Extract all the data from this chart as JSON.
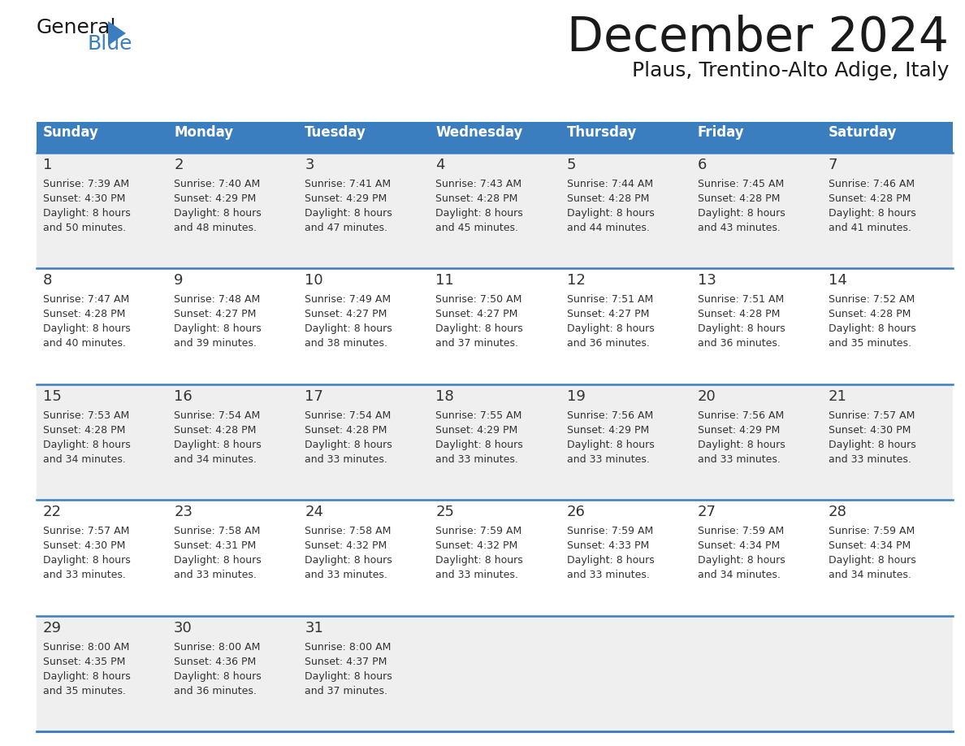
{
  "title": "December 2024",
  "subtitle": "Plaus, Trentino-Alto Adige, Italy",
  "days_of_week": [
    "Sunday",
    "Monday",
    "Tuesday",
    "Wednesday",
    "Thursday",
    "Friday",
    "Saturday"
  ],
  "header_bg": "#3a7ebf",
  "header_text_color": "#ffffff",
  "row_bg_odd": "#efefef",
  "row_bg_even": "#ffffff",
  "cell_text_color": "#333333",
  "day_num_color": "#333333",
  "divider_color": "#3a7ebf",
  "calendar_data": [
    [
      {
        "day": 1,
        "sunrise": "7:39 AM",
        "sunset": "4:30 PM",
        "daylight": "8 hours and 50 minutes"
      },
      {
        "day": 2,
        "sunrise": "7:40 AM",
        "sunset": "4:29 PM",
        "daylight": "8 hours and 48 minutes"
      },
      {
        "day": 3,
        "sunrise": "7:41 AM",
        "sunset": "4:29 PM",
        "daylight": "8 hours and 47 minutes"
      },
      {
        "day": 4,
        "sunrise": "7:43 AM",
        "sunset": "4:28 PM",
        "daylight": "8 hours and 45 minutes"
      },
      {
        "day": 5,
        "sunrise": "7:44 AM",
        "sunset": "4:28 PM",
        "daylight": "8 hours and 44 minutes"
      },
      {
        "day": 6,
        "sunrise": "7:45 AM",
        "sunset": "4:28 PM",
        "daylight": "8 hours and 43 minutes"
      },
      {
        "day": 7,
        "sunrise": "7:46 AM",
        "sunset": "4:28 PM",
        "daylight": "8 hours and 41 minutes"
      }
    ],
    [
      {
        "day": 8,
        "sunrise": "7:47 AM",
        "sunset": "4:28 PM",
        "daylight": "8 hours and 40 minutes"
      },
      {
        "day": 9,
        "sunrise": "7:48 AM",
        "sunset": "4:27 PM",
        "daylight": "8 hours and 39 minutes"
      },
      {
        "day": 10,
        "sunrise": "7:49 AM",
        "sunset": "4:27 PM",
        "daylight": "8 hours and 38 minutes"
      },
      {
        "day": 11,
        "sunrise": "7:50 AM",
        "sunset": "4:27 PM",
        "daylight": "8 hours and 37 minutes"
      },
      {
        "day": 12,
        "sunrise": "7:51 AM",
        "sunset": "4:27 PM",
        "daylight": "8 hours and 36 minutes"
      },
      {
        "day": 13,
        "sunrise": "7:51 AM",
        "sunset": "4:28 PM",
        "daylight": "8 hours and 36 minutes"
      },
      {
        "day": 14,
        "sunrise": "7:52 AM",
        "sunset": "4:28 PM",
        "daylight": "8 hours and 35 minutes"
      }
    ],
    [
      {
        "day": 15,
        "sunrise": "7:53 AM",
        "sunset": "4:28 PM",
        "daylight": "8 hours and 34 minutes"
      },
      {
        "day": 16,
        "sunrise": "7:54 AM",
        "sunset": "4:28 PM",
        "daylight": "8 hours and 34 minutes"
      },
      {
        "day": 17,
        "sunrise": "7:54 AM",
        "sunset": "4:28 PM",
        "daylight": "8 hours and 33 minutes"
      },
      {
        "day": 18,
        "sunrise": "7:55 AM",
        "sunset": "4:29 PM",
        "daylight": "8 hours and 33 minutes"
      },
      {
        "day": 19,
        "sunrise": "7:56 AM",
        "sunset": "4:29 PM",
        "daylight": "8 hours and 33 minutes"
      },
      {
        "day": 20,
        "sunrise": "7:56 AM",
        "sunset": "4:29 PM",
        "daylight": "8 hours and 33 minutes"
      },
      {
        "day": 21,
        "sunrise": "7:57 AM",
        "sunset": "4:30 PM",
        "daylight": "8 hours and 33 minutes"
      }
    ],
    [
      {
        "day": 22,
        "sunrise": "7:57 AM",
        "sunset": "4:30 PM",
        "daylight": "8 hours and 33 minutes"
      },
      {
        "day": 23,
        "sunrise": "7:58 AM",
        "sunset": "4:31 PM",
        "daylight": "8 hours and 33 minutes"
      },
      {
        "day": 24,
        "sunrise": "7:58 AM",
        "sunset": "4:32 PM",
        "daylight": "8 hours and 33 minutes"
      },
      {
        "day": 25,
        "sunrise": "7:59 AM",
        "sunset": "4:32 PM",
        "daylight": "8 hours and 33 minutes"
      },
      {
        "day": 26,
        "sunrise": "7:59 AM",
        "sunset": "4:33 PM",
        "daylight": "8 hours and 33 minutes"
      },
      {
        "day": 27,
        "sunrise": "7:59 AM",
        "sunset": "4:34 PM",
        "daylight": "8 hours and 34 minutes"
      },
      {
        "day": 28,
        "sunrise": "7:59 AM",
        "sunset": "4:34 PM",
        "daylight": "8 hours and 34 minutes"
      }
    ],
    [
      {
        "day": 29,
        "sunrise": "8:00 AM",
        "sunset": "4:35 PM",
        "daylight": "8 hours and 35 minutes"
      },
      {
        "day": 30,
        "sunrise": "8:00 AM",
        "sunset": "4:36 PM",
        "daylight": "8 hours and 36 minutes"
      },
      {
        "day": 31,
        "sunrise": "8:00 AM",
        "sunset": "4:37 PM",
        "daylight": "8 hours and 37 minutes"
      },
      null,
      null,
      null,
      null
    ]
  ]
}
